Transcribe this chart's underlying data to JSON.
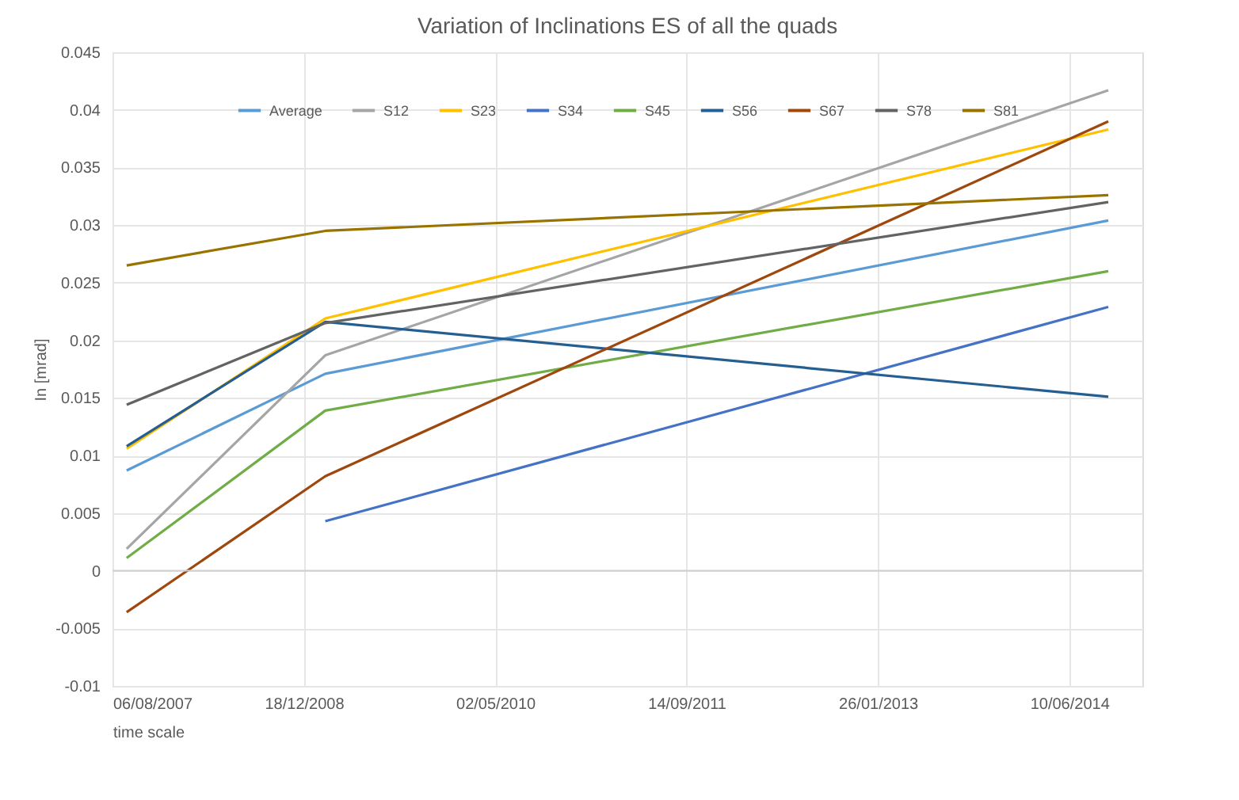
{
  "chart_data": {
    "type": "line",
    "title": "Variation of Inclinations ES of all the quads",
    "xlabel": "time scale",
    "ylabel": "In [mrad]",
    "x": [
      "2007-09-12",
      "2009-02-12",
      "2014-09-20"
    ],
    "series": [
      {
        "name": "Average",
        "color": "#5b9bd5",
        "values": [
          0.0087,
          0.0171,
          0.0304
        ]
      },
      {
        "name": "S12",
        "color": "#a5a5a5",
        "values": [
          0.0019,
          0.0187,
          0.0417
        ]
      },
      {
        "name": "S23",
        "color": "#ffc000",
        "values": [
          0.0106,
          0.0219,
          0.0383
        ]
      },
      {
        "name": "S34",
        "color": "#4472c4",
        "values": [
          null,
          0.0043,
          0.0229
        ]
      },
      {
        "name": "S45",
        "color": "#70ad47",
        "values": [
          0.0011,
          0.0139,
          0.026
        ]
      },
      {
        "name": "S56",
        "color": "#255e91",
        "values": [
          0.0108,
          0.0216,
          0.0151
        ]
      },
      {
        "name": "S67",
        "color": "#9e480e",
        "values": [
          -0.0036,
          0.0082,
          0.039
        ]
      },
      {
        "name": "S78",
        "color": "#636363",
        "values": [
          0.0144,
          0.0215,
          0.032
        ]
      },
      {
        "name": "S81",
        "color": "#997300",
        "values": [
          0.0265,
          0.0295,
          0.0326
        ]
      }
    ],
    "xlim": [
      "2007-08-06",
      "2014-12-18"
    ],
    "xticks": [
      {
        "value": "2007-08-06",
        "label": "06/08/2007"
      },
      {
        "value": "2008-12-18",
        "label": "18/12/2008"
      },
      {
        "value": "2010-05-02",
        "label": "02/05/2010"
      },
      {
        "value": "2011-09-14",
        "label": "14/09/2011"
      },
      {
        "value": "2013-01-26",
        "label": "26/01/2013"
      },
      {
        "value": "2014-06-10",
        "label": "10/06/2014"
      }
    ],
    "ylim": [
      -0.01,
      0.045
    ],
    "yticks": [
      -0.01,
      -0.005,
      0,
      0.005,
      0.01,
      0.015,
      0.02,
      0.025,
      0.03,
      0.035,
      0.04,
      0.045
    ],
    "grid": true,
    "legend": "top",
    "line_style": "solid",
    "marker": "none"
  }
}
